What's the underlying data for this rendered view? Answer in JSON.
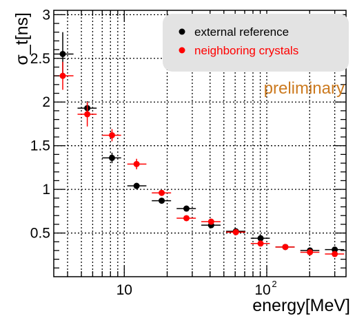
{
  "chart_data": {
    "type": "scatter",
    "ylabel": "σ_t[ns]",
    "xlabel": "energy[MeV]",
    "annotation": "preliminary",
    "annotation_color": "#cc7a1f",
    "x_scale": "log",
    "xlim": [
      3.2,
      360
    ],
    "ylim": [
      0.0,
      3.05
    ],
    "grid": true,
    "legend_position": "top-right",
    "y_ticks": [
      {
        "value": 0.5,
        "label": "0.5"
      },
      {
        "value": 1.0,
        "label": "1"
      },
      {
        "value": 1.5,
        "label": "1.5"
      },
      {
        "value": 2.0,
        "label": "2"
      },
      {
        "value": 2.5,
        "label": "2.5"
      },
      {
        "value": 3.0,
        "label": "3"
      }
    ],
    "x_ticks": [
      {
        "value": 10,
        "label": "10"
      },
      {
        "value": 100,
        "label": "10",
        "sup": "2"
      }
    ],
    "series": [
      {
        "name": "external reference",
        "color": "#000000",
        "points": [
          {
            "x": 3.7,
            "y": 2.55,
            "xerr": [
              3.2,
              4.4
            ],
            "yerr": 0.25
          },
          {
            "x": 5.5,
            "y": 1.93,
            "xerr": [
              4.7,
              6.4
            ],
            "yerr": 0.08
          },
          {
            "x": 8.2,
            "y": 1.36,
            "xerr": [
              7.0,
              9.5
            ],
            "yerr": 0.06
          },
          {
            "x": 12.2,
            "y": 1.04,
            "xerr": [
              10.5,
              14.3
            ],
            "yerr": 0.03
          },
          {
            "x": 18.3,
            "y": 0.87,
            "xerr": [
              15.6,
              21.3
            ],
            "yerr": 0.03
          },
          {
            "x": 27.3,
            "y": 0.78,
            "xerr": [
              23.3,
              31.8
            ],
            "yerr": 0.03
          },
          {
            "x": 40.7,
            "y": 0.59,
            "xerr": [
              34.7,
              47.4
            ],
            "yerr": 0.03
          },
          {
            "x": 60.7,
            "y": 0.52,
            "xerr": [
              51.8,
              70.7
            ],
            "yerr": 0.02
          },
          {
            "x": 90.5,
            "y": 0.44,
            "xerr": [
              77.2,
              105.0
            ],
            "yerr": 0.02
          },
          {
            "x": 135,
            "y": 0.34,
            "xerr": [
              115,
              157
            ],
            "yerr": 0.02
          },
          {
            "x": 201,
            "y": 0.3,
            "xerr": [
              172,
              234
            ],
            "yerr": 0.02
          },
          {
            "x": 300,
            "y": 0.31,
            "xerr": [
              256,
              349
            ],
            "yerr": 0.02
          }
        ]
      },
      {
        "name": "neighboring crystals",
        "color": "#ff0000",
        "points": [
          {
            "x": 3.7,
            "y": 2.3,
            "xerr": [
              3.2,
              4.4
            ],
            "yerr": 0.16
          },
          {
            "x": 5.5,
            "y": 1.86,
            "xerr": [
              4.7,
              6.4
            ],
            "yerr": 0.14
          },
          {
            "x": 8.2,
            "y": 1.62,
            "xerr": [
              7.0,
              9.5
            ],
            "yerr": 0.07
          },
          {
            "x": 12.2,
            "y": 1.29,
            "xerr": [
              10.5,
              14.3
            ],
            "yerr": 0.06
          },
          {
            "x": 18.3,
            "y": 0.96,
            "xerr": [
              15.6,
              21.3
            ],
            "yerr": 0.03
          },
          {
            "x": 27.3,
            "y": 0.67,
            "xerr": [
              23.3,
              31.8
            ],
            "yerr": 0.02
          },
          {
            "x": 40.7,
            "y": 0.63,
            "xerr": [
              34.7,
              47.4
            ],
            "yerr": 0.02
          },
          {
            "x": 60.7,
            "y": 0.51,
            "xerr": [
              51.8,
              70.7
            ],
            "yerr": 0.02
          },
          {
            "x": 90.5,
            "y": 0.38,
            "xerr": [
              77.2,
              105.0
            ],
            "yerr": 0.02
          },
          {
            "x": 135,
            "y": 0.34,
            "xerr": [
              115,
              157
            ],
            "yerr": 0.02
          },
          {
            "x": 201,
            "y": 0.28,
            "xerr": [
              172,
              234
            ],
            "yerr": 0.02
          },
          {
            "x": 300,
            "y": 0.26,
            "xerr": [
              256,
              349
            ],
            "yerr": 0.02
          }
        ]
      }
    ]
  }
}
